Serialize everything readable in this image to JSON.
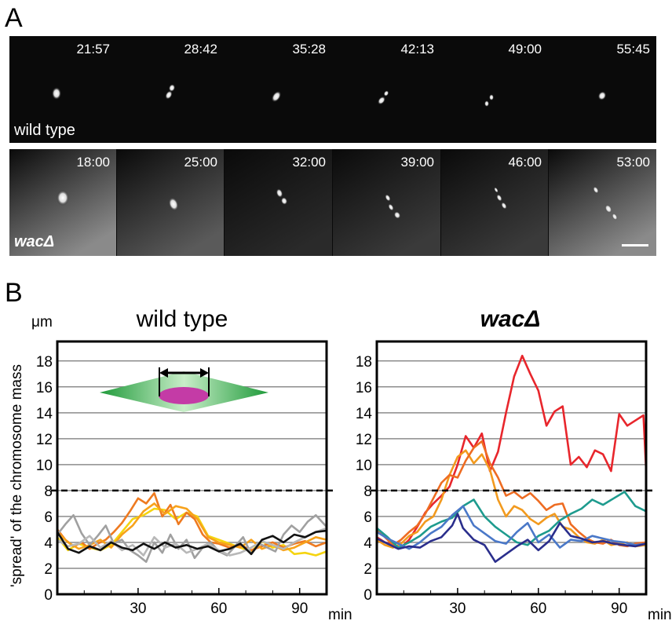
{
  "figure": {
    "panel_a_label": "A",
    "panel_b_label": "B",
    "wild_type_row": {
      "label": "wild type",
      "timestamps": [
        "21:57",
        "28:42",
        "35:28",
        "42:13",
        "49:00",
        "55:45"
      ]
    },
    "wac_row": {
      "label": "wacΔ",
      "timestamps": [
        "18:00",
        "25:00",
        "32:00",
        "39:00",
        "46:00",
        "53:00"
      ]
    }
  },
  "chart_data": [
    {
      "type": "line",
      "title": "wild type",
      "ylabel": "'spread' of the chromosome mass",
      "yunit": "μm",
      "xunit": "min",
      "xlim": [
        0,
        100
      ],
      "ylim": [
        0,
        19.5
      ],
      "yticks": [
        0,
        2,
        4,
        6,
        8,
        10,
        12,
        14,
        16,
        18
      ],
      "xticks": [
        30,
        60,
        90
      ],
      "threshold": 8,
      "grid": true,
      "series": [
        {
          "color": "#f5d410",
          "x": [
            0,
            4,
            8,
            12,
            16,
            20,
            24,
            28,
            32,
            36,
            40,
            44,
            48,
            52,
            56,
            60,
            64,
            68,
            72,
            76,
            80,
            84,
            88,
            92,
            96,
            100
          ],
          "y": [
            4.4,
            3.4,
            3.9,
            3.6,
            3.4,
            3.8,
            4.8,
            5.8,
            6.1,
            6.6,
            6.5,
            5.8,
            6.3,
            6.0,
            4.5,
            4.2,
            3.9,
            3.6,
            3.3,
            4.1,
            3.6,
            3.8,
            3.1,
            3.2,
            3.0,
            3.3
          ]
        },
        {
          "color": "#ee7a20",
          "x": [
            0,
            3,
            6,
            9,
            12,
            15,
            18,
            21,
            24,
            27,
            30,
            33,
            36,
            39,
            42,
            45,
            48,
            51,
            54,
            57,
            60,
            64,
            68,
            72,
            76,
            80,
            84,
            88,
            92,
            96,
            100
          ],
          "y": [
            5.0,
            4.2,
            3.7,
            4.0,
            3.5,
            3.9,
            4.2,
            4.8,
            5.5,
            6.4,
            7.4,
            7.0,
            7.8,
            6.0,
            6.9,
            5.4,
            6.3,
            5.8,
            4.6,
            4.0,
            3.9,
            3.6,
            3.8,
            3.4,
            3.7,
            4.0,
            3.6,
            3.9,
            4.1,
            3.7,
            4.0
          ]
        },
        {
          "color": "#f7a21b",
          "x": [
            0,
            4,
            8,
            12,
            16,
            20,
            24,
            28,
            32,
            36,
            40,
            44,
            48,
            52,
            56,
            60,
            64,
            68,
            72,
            76,
            80,
            84,
            88,
            92,
            96,
            100
          ],
          "y": [
            4.8,
            4.0,
            3.5,
            3.8,
            4.2,
            3.6,
            4.6,
            5.3,
            6.4,
            7.0,
            6.2,
            6.8,
            6.6,
            5.8,
            4.4,
            4.0,
            3.8,
            3.6,
            4.2,
            3.5,
            3.8,
            3.4,
            3.6,
            4.0,
            4.4,
            4.2
          ]
        },
        {
          "color": "#a0a0a0",
          "x": [
            0,
            3,
            6,
            9,
            12,
            15,
            18,
            21,
            24,
            27,
            30,
            33,
            36,
            39,
            42,
            45,
            48,
            51,
            54,
            57,
            60,
            63,
            66,
            69,
            72,
            75,
            78,
            81,
            84,
            87,
            90,
            93,
            96,
            100
          ],
          "y": [
            4.6,
            5.4,
            6.1,
            4.7,
            3.8,
            4.5,
            5.3,
            3.9,
            4.2,
            3.4,
            3.0,
            2.5,
            4.0,
            3.2,
            4.6,
            3.5,
            4.2,
            2.8,
            3.6,
            4.0,
            3.3,
            3.0,
            3.7,
            4.4,
            3.1,
            3.9,
            3.6,
            3.3,
            4.6,
            5.3,
            4.8,
            5.6,
            6.1,
            5.2
          ]
        },
        {
          "color": "#b8b8b8",
          "x": [
            0,
            4,
            8,
            12,
            16,
            20,
            24,
            28,
            32,
            36,
            40,
            44,
            48,
            52,
            56,
            60,
            64,
            68,
            72,
            76,
            80,
            84,
            88,
            92,
            96,
            100
          ],
          "y": [
            4.2,
            3.7,
            3.9,
            4.5,
            3.6,
            4.1,
            3.4,
            3.8,
            3.0,
            4.4,
            3.6,
            3.9,
            3.2,
            3.5,
            3.9,
            3.4,
            3.0,
            3.2,
            3.6,
            4.1,
            3.8,
            3.5,
            4.0,
            4.4,
            4.8,
            5.1
          ]
        },
        {
          "color": "#111111",
          "x": [
            0,
            4,
            8,
            12,
            16,
            20,
            24,
            28,
            32,
            36,
            40,
            44,
            48,
            52,
            56,
            60,
            64,
            68,
            72,
            76,
            80,
            84,
            88,
            92,
            96,
            100
          ],
          "y": [
            4.8,
            3.5,
            3.2,
            3.7,
            3.4,
            4.0,
            3.6,
            3.4,
            3.9,
            3.5,
            4.0,
            3.6,
            3.8,
            3.5,
            3.7,
            3.3,
            3.5,
            3.9,
            3.1,
            4.2,
            4.5,
            4.0,
            4.6,
            4.4,
            4.8,
            4.9
          ]
        }
      ]
    },
    {
      "type": "line",
      "title": "wacΔ",
      "xunit": "min",
      "xlim": [
        0,
        100
      ],
      "ylim": [
        0,
        19.5
      ],
      "yticks": [
        0,
        2,
        4,
        6,
        8,
        10,
        12,
        14,
        16,
        18
      ],
      "xticks": [
        30,
        60,
        90
      ],
      "threshold": 8,
      "grid": true,
      "series": [
        {
          "color": "#e8262c",
          "x": [
            0,
            3,
            6,
            9,
            12,
            15,
            18,
            21,
            24,
            27,
            30,
            33,
            36,
            39,
            42,
            45,
            48,
            51,
            54,
            57,
            60,
            63,
            66,
            69,
            72,
            75,
            78,
            81,
            84,
            87,
            90,
            93,
            96,
            99,
            100
          ],
          "y": [
            4.4,
            4.0,
            3.8,
            3.6,
            4.2,
            5.2,
            6.3,
            7.0,
            7.6,
            8.3,
            10.0,
            12.2,
            11.3,
            12.4,
            9.5,
            11.0,
            14.0,
            16.8,
            18.4,
            17.0,
            15.7,
            13.0,
            14.1,
            14.5,
            10.0,
            10.6,
            9.8,
            11.1,
            10.8,
            9.5,
            13.9,
            13.0,
            13.4,
            13.8,
            9.6
          ]
        },
        {
          "color": "#f29a1e",
          "x": [
            0,
            3,
            6,
            9,
            12,
            15,
            18,
            21,
            24,
            27,
            30,
            33,
            36,
            39,
            42,
            45,
            48,
            51,
            54,
            57,
            60,
            63,
            66,
            69,
            72,
            75,
            78,
            81,
            84,
            87,
            90,
            93,
            96,
            100
          ],
          "y": [
            4.2,
            3.8,
            3.6,
            3.9,
            4.5,
            4.8,
            5.6,
            6.0,
            7.3,
            9.2,
            10.6,
            11.1,
            10.1,
            10.8,
            9.6,
            7.3,
            6.0,
            6.8,
            6.5,
            5.8,
            5.4,
            5.9,
            6.2,
            5.2,
            5.0,
            4.4,
            4.0,
            3.9,
            4.2,
            3.8,
            3.9,
            4.0,
            3.7,
            3.8
          ]
        },
        {
          "color": "#ee6c22",
          "x": [
            0,
            3,
            6,
            9,
            12,
            15,
            18,
            21,
            24,
            27,
            30,
            33,
            36,
            39,
            42,
            45,
            48,
            51,
            54,
            57,
            60,
            63,
            66,
            69,
            72,
            75,
            78,
            81,
            84,
            87,
            90,
            93,
            96,
            100
          ],
          "y": [
            5.0,
            4.4,
            3.8,
            4.2,
            4.8,
            5.3,
            6.2,
            7.4,
            8.6,
            9.2,
            9.0,
            10.3,
            11.3,
            11.8,
            10.1,
            9.0,
            7.6,
            7.9,
            7.4,
            7.8,
            7.2,
            6.5,
            6.9,
            7.0,
            5.4,
            4.8,
            4.3,
            4.0,
            3.9,
            4.2,
            3.8,
            3.7,
            3.9,
            4.0
          ]
        },
        {
          "color": "#1e9b8e",
          "x": [
            0,
            4,
            8,
            12,
            16,
            20,
            24,
            28,
            32,
            36,
            40,
            44,
            48,
            52,
            56,
            60,
            64,
            68,
            72,
            76,
            80,
            84,
            88,
            92,
            96,
            100
          ],
          "y": [
            5.1,
            4.4,
            3.6,
            4.0,
            4.5,
            5.2,
            5.6,
            5.9,
            6.8,
            7.3,
            6.0,
            5.2,
            4.6,
            4.0,
            3.8,
            4.5,
            4.9,
            5.7,
            6.2,
            6.6,
            7.3,
            6.9,
            7.4,
            7.9,
            6.8,
            6.4
          ]
        },
        {
          "color": "#4a78c8",
          "x": [
            0,
            4,
            8,
            12,
            16,
            20,
            24,
            28,
            32,
            36,
            40,
            44,
            48,
            52,
            56,
            60,
            64,
            68,
            72,
            76,
            80,
            84,
            88,
            92,
            96,
            100
          ],
          "y": [
            4.8,
            4.3,
            3.9,
            3.5,
            4.0,
            4.7,
            5.2,
            6.1,
            6.8,
            5.3,
            4.7,
            4.1,
            3.9,
            4.8,
            5.5,
            4.0,
            4.6,
            3.6,
            4.2,
            4.1,
            4.5,
            4.3,
            4.1,
            4.0,
            3.8,
            3.9
          ]
        },
        {
          "color": "#2a2e8c",
          "x": [
            0,
            4,
            8,
            12,
            16,
            20,
            24,
            28,
            30,
            32,
            36,
            40,
            44,
            48,
            52,
            56,
            60,
            64,
            68,
            72,
            76,
            80,
            84,
            88,
            92,
            96,
            100
          ],
          "y": [
            4.3,
            3.9,
            3.5,
            3.7,
            3.6,
            4.1,
            4.4,
            5.3,
            6.2,
            5.1,
            4.2,
            3.8,
            2.5,
            3.1,
            3.7,
            4.2,
            3.4,
            4.1,
            5.5,
            4.5,
            4.3,
            4.0,
            4.1,
            3.9,
            3.8,
            3.7,
            3.9
          ]
        }
      ]
    }
  ]
}
